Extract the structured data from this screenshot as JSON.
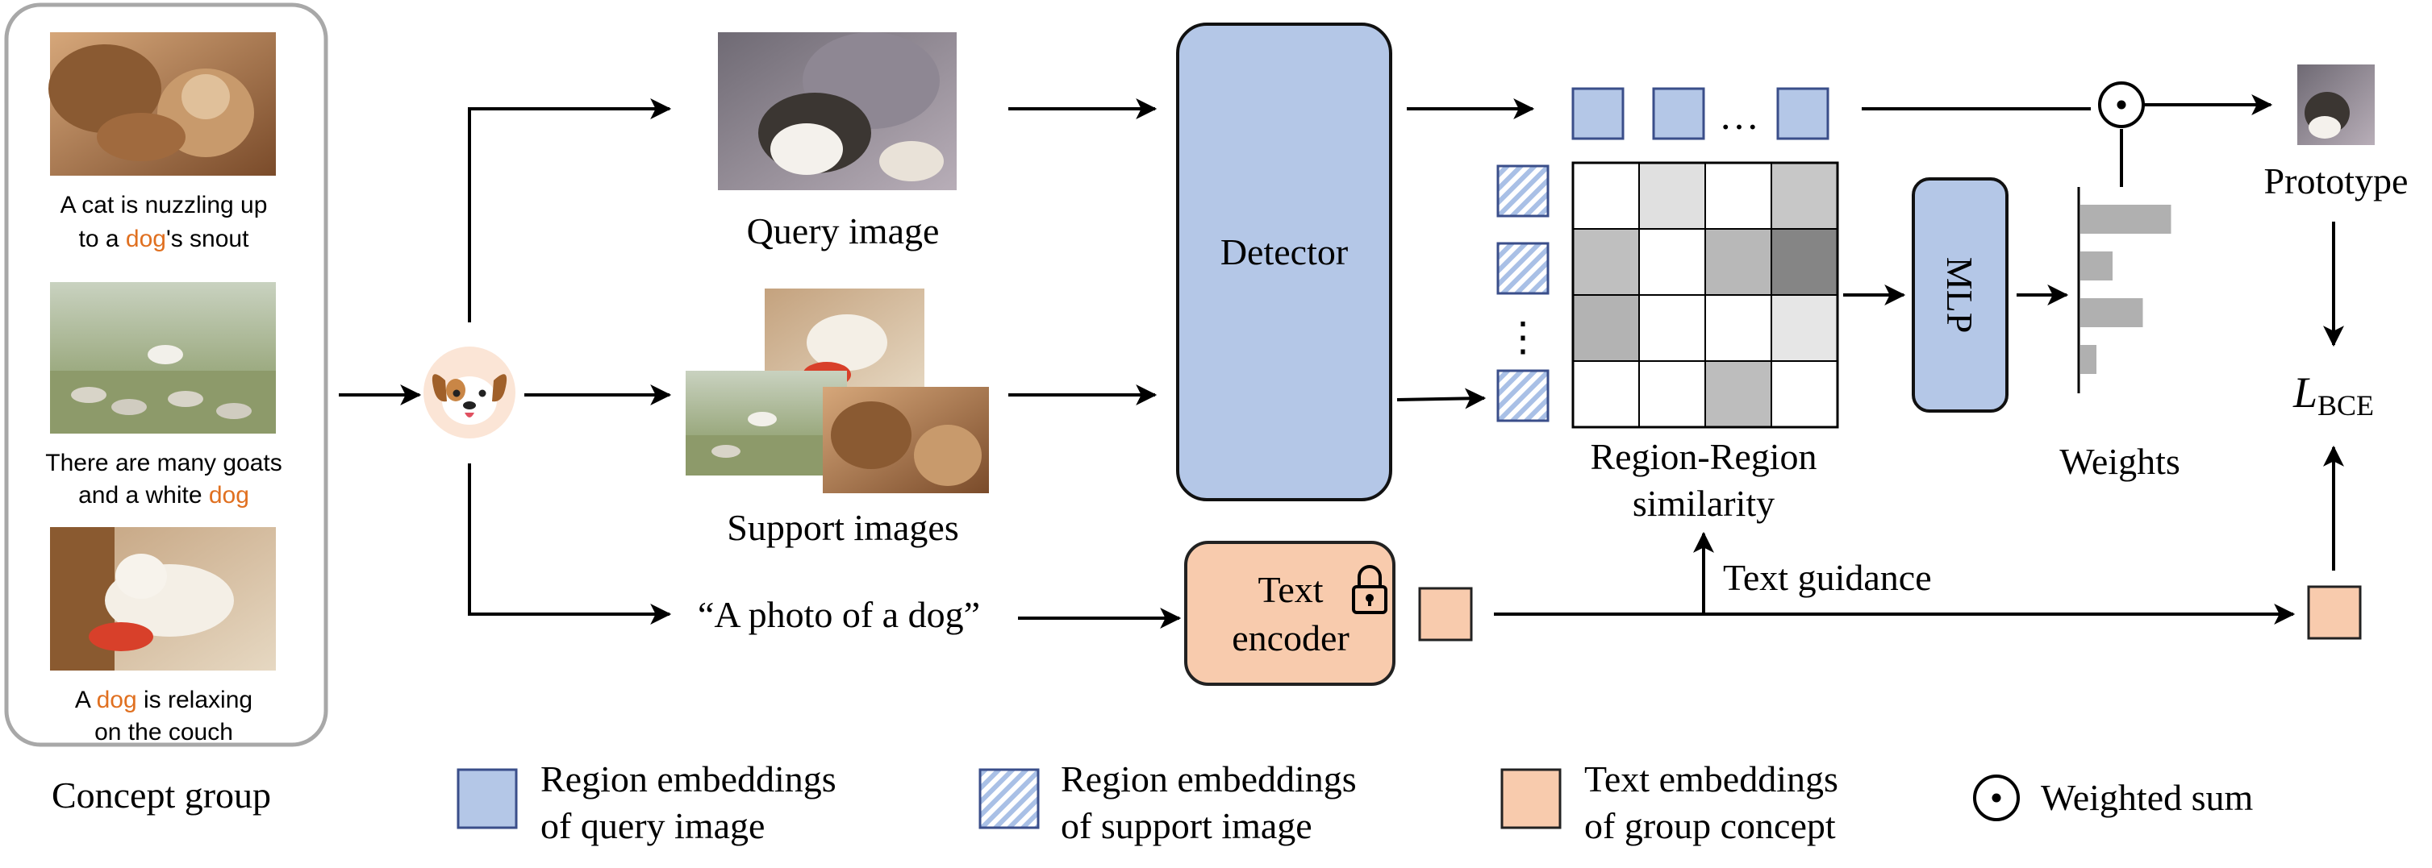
{
  "concept_group": {
    "title": "Concept group",
    "items": [
      {
        "caption_lines": [
          [
            {
              "t": "A cat is nuzzling up"
            }
          ],
          [
            {
              "t": "to a "
            },
            {
              "t": "dog",
              "hl": true
            },
            {
              "t": "'s snout"
            }
          ]
        ]
      },
      {
        "caption_lines": [
          [
            {
              "t": "There are many goats"
            }
          ],
          [
            {
              "t": "and a white "
            },
            {
              "t": "dog",
              "hl": true
            }
          ]
        ]
      },
      {
        "caption_lines": [
          [
            {
              "t": "A "
            },
            {
              "t": "dog",
              "hl": true
            },
            {
              "t": " is relaxing"
            }
          ],
          [
            {
              "t": "on the couch"
            }
          ]
        ]
      }
    ]
  },
  "labels": {
    "query_image": "Query image",
    "support_images": "Support images",
    "text_prompt": "“A photo of a dog”",
    "detector": "Detector",
    "text_encoder_line1": "Text",
    "text_encoder_line2": "encoder",
    "ellipsis_h": "…",
    "ellipsis_v": "⋮",
    "similarity_line1": "Region-Region",
    "similarity_line2": "similarity",
    "mlp": "MLP",
    "weights": "Weights",
    "prototype": "Prototype",
    "loss_main": "L",
    "loss_sub": "BCE",
    "text_guidance": "Text guidance"
  },
  "legend": [
    {
      "key": "query",
      "line1": "Region embeddings",
      "line2": "of query image"
    },
    {
      "key": "support",
      "line1": "Region embeddings",
      "line2": "of support image"
    },
    {
      "key": "text",
      "line1": "Text embeddings",
      "line2": "of group concept"
    },
    {
      "key": "wsum",
      "line1": "Weighted sum",
      "line2": ""
    }
  ],
  "similarity_matrix": [
    [
      0,
      0.12,
      0,
      0.22
    ],
    [
      0.25,
      0,
      0.28,
      0.48
    ],
    [
      0.3,
      0,
      0,
      0.1
    ],
    [
      0,
      0,
      0.26,
      0
    ]
  ],
  "weights_bars": [
    0.9,
    0.32,
    0.62,
    0.16
  ],
  "colors": {
    "blue_fill": "#b4c7e7",
    "blue_stroke": "#3a4e8a",
    "peach_fill": "#f8cbad",
    "peach_stroke": "#2b2b2b",
    "highlight": "#e07020",
    "bar": "#b0b0b0",
    "group_border": "#a8a8a8"
  }
}
